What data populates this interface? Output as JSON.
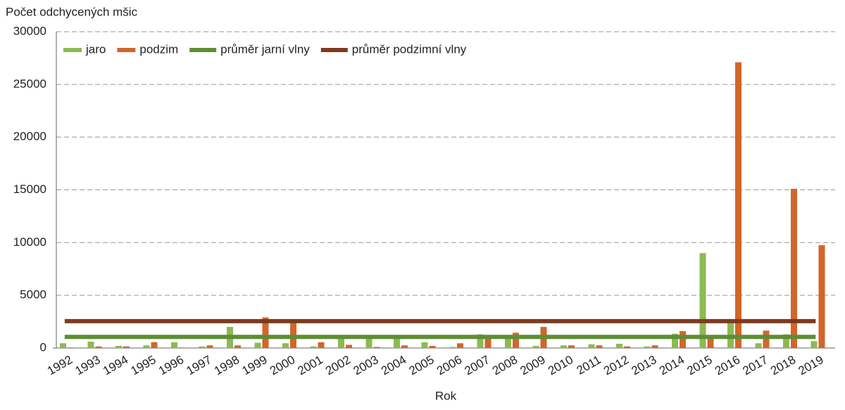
{
  "chart_data": {
    "type": "bar",
    "y_label": "Počet odchycených mšic",
    "x_label": "Rok",
    "categories": [
      "1992",
      "1993",
      "1994",
      "1995",
      "1996",
      "1997",
      "1998",
      "1999",
      "2000",
      "2001",
      "2002",
      "2003",
      "2004",
      "2005",
      "2006",
      "2007",
      "2008",
      "2009",
      "2010",
      "2011",
      "2012",
      "2013",
      "2014",
      "2015",
      "2016",
      "2017",
      "2018",
      "2019"
    ],
    "series": [
      {
        "name": "jaro",
        "color": "#8cba52",
        "values": [
          450,
          600,
          200,
          250,
          550,
          150,
          2000,
          500,
          450,
          150,
          1000,
          1000,
          900,
          550,
          100,
          1300,
          1000,
          200,
          250,
          350,
          400,
          150,
          1350,
          9000,
          2400,
          450,
          1300,
          650
        ]
      },
      {
        "name": "podzim",
        "color": "#d2662a",
        "values": [
          50,
          150,
          150,
          550,
          50,
          250,
          250,
          2900,
          2400,
          550,
          300,
          100,
          250,
          200,
          450,
          1000,
          1450,
          2000,
          250,
          250,
          150,
          250,
          1600,
          900,
          27100,
          1650,
          15100,
          9750
        ]
      },
      {
        "name": "průměr jarní vlny",
        "type": "line",
        "color": "#5e8e34",
        "values": [
          1050,
          1050,
          1050,
          1050,
          1050,
          1050,
          1050,
          1050,
          1050,
          1050,
          1050,
          1050,
          1050,
          1050,
          1050,
          1050,
          1050,
          1050,
          1050,
          1050,
          1050,
          1050,
          1050,
          1050,
          1050,
          1050,
          1050,
          1050
        ]
      },
      {
        "name": "průměr podzimní vlny",
        "type": "line",
        "color": "#7d3b1f",
        "values": [
          2550,
          2550,
          2550,
          2550,
          2550,
          2550,
          2550,
          2550,
          2550,
          2550,
          2550,
          2550,
          2550,
          2550,
          2550,
          2550,
          2550,
          2550,
          2550,
          2550,
          2550,
          2550,
          2550,
          2550,
          2550,
          2550,
          2550,
          2550
        ]
      }
    ],
    "ylim": [
      0,
      30000
    ],
    "yticks": [
      0,
      5000,
      10000,
      15000,
      20000,
      25000,
      30000
    ],
    "grid": true,
    "legend": "top-left"
  }
}
